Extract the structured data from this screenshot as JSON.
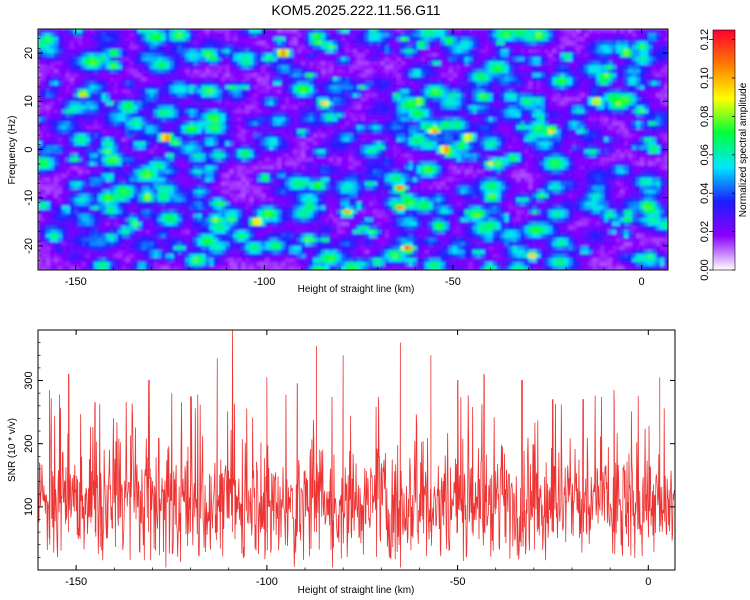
{
  "title": "KOM5.2025.222.11.56.G11",
  "chart_data": [
    {
      "type": "heatmap",
      "name": "spectrogram",
      "xlabel": "Height of straight line (km)",
      "ylabel": "Frequency (Hz)",
      "xlim": [
        -160,
        7
      ],
      "ylim": [
        -25,
        25
      ],
      "x_ticks": [
        -150,
        -100,
        -50,
        0
      ],
      "x_tick_labels": [
        "-150",
        "-100",
        "-50",
        "0"
      ],
      "y_ticks": [
        -20,
        -10,
        0,
        10,
        20
      ],
      "y_tick_labels": [
        "-20",
        "-10",
        "0",
        "10",
        "20"
      ],
      "colorbar": {
        "label": "Normalized spectral amplitude",
        "range": [
          0,
          0.125
        ],
        "ticks": [
          0.0,
          0.02,
          0.04,
          0.06,
          0.08,
          0.1,
          0.12
        ],
        "tick_labels": [
          "0.00",
          "0.02",
          "0.04",
          "0.06",
          "0.08",
          "0.10",
          "0.12"
        ],
        "colormap": [
          "#ffffff",
          "#8a00ff",
          "#1d1dff",
          "#00e6ff",
          "#00ff3a",
          "#ffff00",
          "#ff7a00",
          "#ff0030"
        ]
      },
      "peaks": [
        {
          "x": -95,
          "y": 20,
          "value": 0.11
        },
        {
          "x": -126,
          "y": 2.5,
          "value": 0.11
        },
        {
          "x": -148,
          "y": 11.5,
          "value": 0.09
        },
        {
          "x": -52,
          "y": 0,
          "value": 0.11
        },
        {
          "x": -55,
          "y": 4,
          "value": 0.1
        },
        {
          "x": -46,
          "y": 2.5,
          "value": 0.09
        },
        {
          "x": -64,
          "y": -8,
          "value": 0.1
        },
        {
          "x": -78,
          "y": -13,
          "value": 0.09
        },
        {
          "x": -64,
          "y": -12,
          "value": 0.1
        },
        {
          "x": -102,
          "y": -15,
          "value": 0.1
        },
        {
          "x": -62,
          "y": -20.5,
          "value": 0.11
        },
        {
          "x": -29,
          "y": -22,
          "value": 0.09
        },
        {
          "x": -84,
          "y": 9.5,
          "value": 0.09
        },
        {
          "x": -59,
          "y": 10,
          "value": 0.08
        },
        {
          "x": -24,
          "y": 4,
          "value": 0.09
        },
        {
          "x": -12,
          "y": 10,
          "value": 0.09
        },
        {
          "x": -4,
          "y": 20,
          "value": 0.08
        },
        {
          "x": -131,
          "y": -10,
          "value": 0.08
        },
        {
          "x": -140,
          "y": 20,
          "value": 0.07
        },
        {
          "x": -40,
          "y": -3,
          "value": 0.08
        }
      ]
    },
    {
      "type": "line",
      "name": "snr",
      "xlabel": "Height of straight line (km)",
      "ylabel": "SNR (10 * v/v)",
      "xlim": [
        -160,
        7
      ],
      "ylim": [
        0,
        380
      ],
      "x_ticks": [
        -150,
        -100,
        -50,
        0
      ],
      "x_tick_labels": [
        "-150",
        "-100",
        "-50",
        "0"
      ],
      "y_ticks": [
        100,
        200,
        300
      ],
      "y_tick_labels": [
        "100",
        "200",
        "300"
      ],
      "series": [
        {
          "name": "SNR",
          "color": "#ee3333",
          "baseline_mean": 110,
          "noise_spread": 55,
          "spikes": [
            {
              "x": -157,
              "value": 285
            },
            {
              "x": -152,
              "value": 310
            },
            {
              "x": -145,
              "value": 265
            },
            {
              "x": -131,
              "value": 300
            },
            {
              "x": -120,
              "value": 275
            },
            {
              "x": -113,
              "value": 335
            },
            {
              "x": -109,
              "value": 380
            },
            {
              "x": -100,
              "value": 305
            },
            {
              "x": -92,
              "value": 295
            },
            {
              "x": -87,
              "value": 355
            },
            {
              "x": -80,
              "value": 340
            },
            {
              "x": -65,
              "value": 360
            },
            {
              "x": -57,
              "value": 340
            },
            {
              "x": -50,
              "value": 300
            },
            {
              "x": -43,
              "value": 310
            },
            {
              "x": -33,
              "value": 300
            },
            {
              "x": -25,
              "value": 270
            },
            {
              "x": -17,
              "value": 270
            },
            {
              "x": -9,
              "value": 285
            },
            {
              "x": 3,
              "value": 305
            }
          ]
        }
      ]
    }
  ]
}
